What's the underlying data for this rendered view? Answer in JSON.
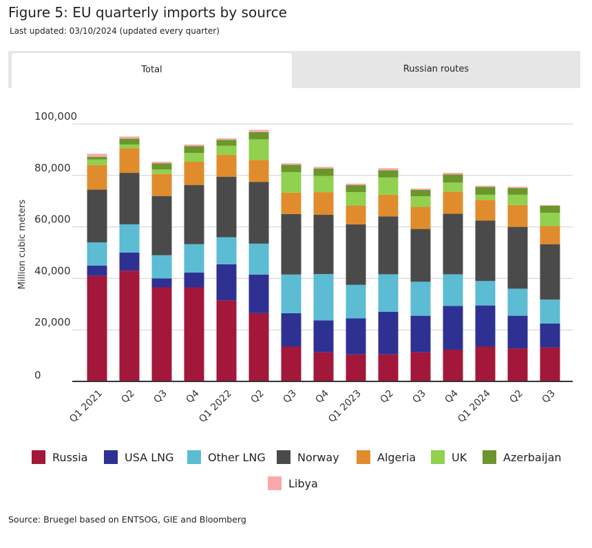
{
  "title": "Figure 5: EU quarterly imports by source",
  "subtitle": "Last updated: 03/10/2024 (updated every quarter)",
  "tabs": [
    {
      "label": "Total",
      "active": true
    },
    {
      "label": "Russian routes",
      "active": false
    }
  ],
  "source": "Source: Bruegel based on ENTSOG, GIE and Bloomberg",
  "chart_data": {
    "type": "bar",
    "stacked": true,
    "title": "",
    "xlabel": "",
    "ylabel": "Million cubic meters",
    "ylim": [
      0,
      100000
    ],
    "yticks": [
      0,
      20000,
      40000,
      60000,
      80000,
      100000
    ],
    "ytick_labels": [
      "0",
      "20,000",
      "40,000",
      "60,000",
      "80,000",
      "100,000"
    ],
    "grid": true,
    "legend_position": "bottom",
    "categories": [
      "Q1 2021",
      "Q2",
      "Q3",
      "Q4",
      "Q1 2022",
      "Q2",
      "Q3",
      "Q4",
      "Q1 2023",
      "Q2",
      "Q3",
      "Q4",
      "Q1 2024",
      "Q2",
      "Q3"
    ],
    "series": [
      {
        "name": "Russia",
        "color": "#a3173a",
        "values": [
          41000,
          43000,
          36500,
          36500,
          31500,
          26500,
          13500,
          11300,
          10500,
          10500,
          11300,
          12300,
          13500,
          12800,
          13200
        ]
      },
      {
        "name": "USA LNG",
        "color": "#2e3192",
        "values": [
          4000,
          7000,
          3500,
          5800,
          14000,
          15000,
          13000,
          12400,
          14000,
          16500,
          14200,
          17000,
          16000,
          12700,
          9300
        ]
      },
      {
        "name": "Other LNG",
        "color": "#5bbcd3",
        "values": [
          9000,
          11000,
          9000,
          11000,
          10500,
          12000,
          15000,
          18000,
          13000,
          14600,
          13200,
          12300,
          9500,
          10500,
          9300
        ]
      },
      {
        "name": "Norway",
        "color": "#4a4a4a",
        "values": [
          20500,
          20000,
          23000,
          23000,
          23500,
          24000,
          23500,
          23000,
          23500,
          22500,
          20500,
          23500,
          23500,
          24000,
          21500
        ]
      },
      {
        "name": "Algeria",
        "color": "#e08c2c",
        "values": [
          9500,
          9500,
          8500,
          9000,
          8500,
          8500,
          8300,
          8800,
          7300,
          8400,
          8600,
          8600,
          8000,
          8500,
          7000
        ]
      },
      {
        "name": "UK",
        "color": "#92d050",
        "values": [
          2200,
          1500,
          1800,
          3400,
          3500,
          8000,
          8000,
          6300,
          5200,
          6700,
          4100,
          3500,
          2000,
          4000,
          5200
        ]
      },
      {
        "name": "Azerbaijan",
        "color": "#6a962c",
        "values": [
          1000,
          2300,
          2400,
          2700,
          2300,
          2800,
          2800,
          2900,
          2700,
          2800,
          2500,
          3200,
          3000,
          2600,
          2700
        ]
      },
      {
        "name": "Libya",
        "color": "#f9a9a9",
        "values": [
          1200,
          800,
          600,
          600,
          600,
          900,
          600,
          600,
          600,
          800,
          500,
          600,
          500,
          500,
          300
        ]
      }
    ]
  }
}
